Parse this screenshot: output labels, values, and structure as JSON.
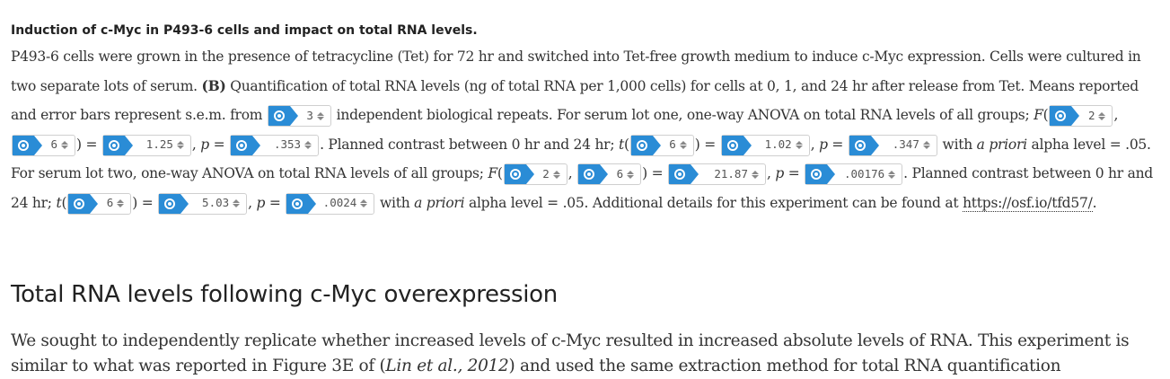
{
  "figure": {
    "title": "Induction of c-Myc in P493-6 cells and impact on total RNA levels.",
    "caption": {
      "s1": "P493-6 cells were grown in the presence of tetracycline (Tet) for 72 hr and switched into Tet-free growth medium to induce c-Myc expression. Cells were cultured in two separate lots of serum.",
      "b_label": "(B)",
      "s2": "Quantification of total RNA levels (ng of total RNA per 1,000 cells) for cells at 0, 1, and 24 hr after release from Tet. Means reported and error bars represent s.e.m. from",
      "s3": "independent biological repeats. For serum lot one, one-way ANOVA on total RNA levels of all groups;",
      "F": "F",
      "t": "t",
      "p": "p",
      "open_paren": "(",
      "comma": ",",
      "close_eq": ") =",
      "comma_p_eq": ", ",
      "eq": " =",
      "s4": ". Planned contrast between 0 hr and 24 hr;",
      "s5": "with",
      "a_priori": "a priori",
      "s6": "alpha level = .05. For serum lot two, one-way ANOVA on total RNA levels of all groups;",
      "period": ".",
      "s7": "Planned contrast between 0 hr and 24 hr;",
      "s8": "alpha level = .05. Additional details for this experiment can be found at",
      "link": "https://osf.io/tfd57/",
      "s9": "."
    },
    "values": {
      "repeats": "3",
      "lot1_anova_df1": "2",
      "lot1_anova_df2": "6",
      "lot1_F": "1.25",
      "lot1_anova_p": ".353",
      "lot1_t_df": "6",
      "lot1_t": "1.02",
      "lot1_t_p": ".347",
      "lot2_anova_df1": "2",
      "lot2_anova_df2": "6",
      "lot2_F": "21.87",
      "lot2_anova_p": ".00176",
      "lot2_t_df": "6",
      "lot2_t": "5.03",
      "lot2_t_p": ".0024"
    }
  },
  "section": {
    "heading": "Total RNA levels following c-Myc overexpression",
    "p1": "We sought to independently replicate whether increased levels of c-Myc resulted in increased absolute levels of RNA. This experiment is similar to what was reported in Figure 3E of (",
    "cite": "Lin et al., 2012",
    "p2": ") and used the same extraction method for total RNA quantification"
  },
  "colors": {
    "widget_accent": "#2a8cd6",
    "text": "#333333"
  }
}
